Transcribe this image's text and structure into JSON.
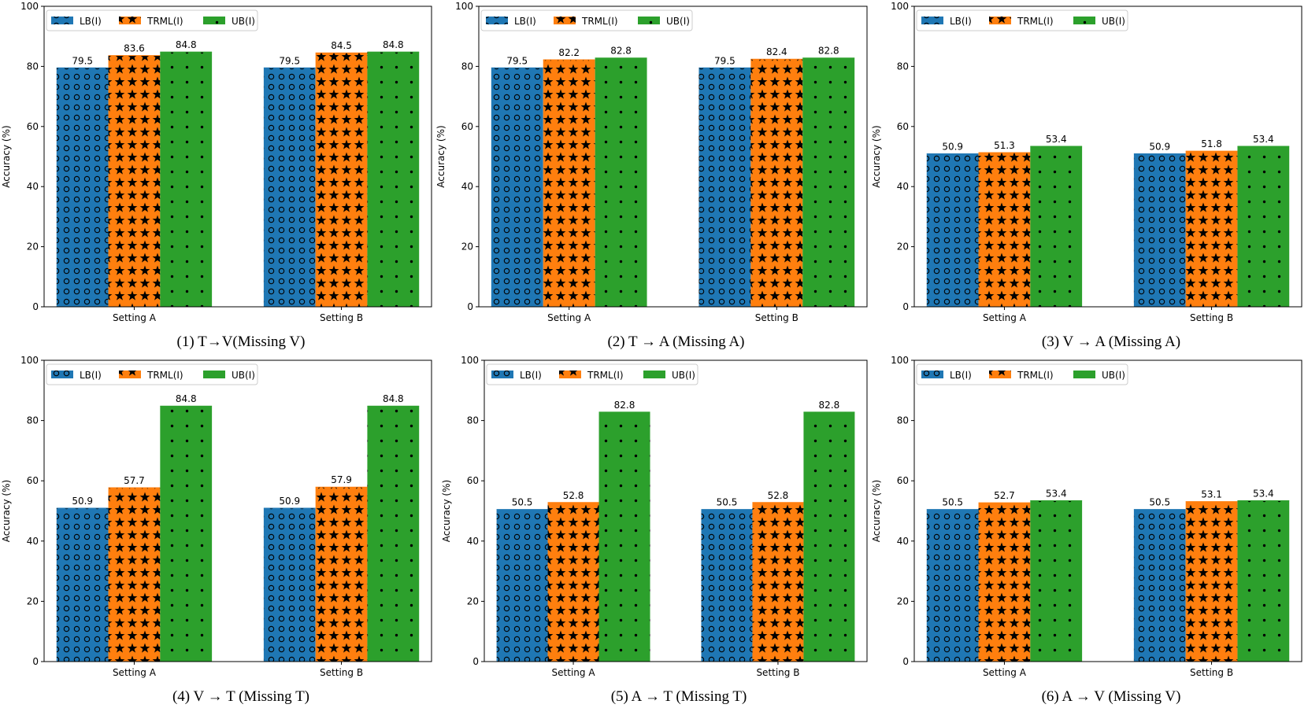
{
  "colors": {
    "series_0": "#1f77b4",
    "series_1": "#ff7f0e",
    "series_2": "#2ca02c"
  },
  "chart_data": [
    {
      "type": "bar",
      "caption": "(1) T→V(Missing V)",
      "categories": [
        "Setting A",
        "Setting B"
      ],
      "ylabel": "Accuracy (%)",
      "ylim": [
        0,
        100
      ],
      "yticks": [
        "0",
        "20",
        "40",
        "60",
        "80",
        "100"
      ],
      "legend": "upper-left",
      "series": [
        {
          "name": "LB(I)",
          "values": [
            79.5,
            79.5
          ],
          "labels": [
            "79.5",
            "79.5"
          ],
          "pattern": "circles"
        },
        {
          "name": "TRML(I)",
          "values": [
            83.6,
            84.5
          ],
          "labels": [
            "83.6",
            "84.5"
          ],
          "pattern": "stars"
        },
        {
          "name": "UB(I)",
          "values": [
            84.8,
            84.8
          ],
          "labels": [
            "84.8",
            "84.8"
          ],
          "pattern": "dots"
        }
      ]
    },
    {
      "type": "bar",
      "caption": "(2) T → A (Missing A)",
      "categories": [
        "Setting A",
        "Setting B"
      ],
      "ylabel": "Accuracy (%)",
      "ylim": [
        0,
        100
      ],
      "yticks": [
        "0",
        "20",
        "40",
        "60",
        "80",
        "100"
      ],
      "legend": "upper-left",
      "series": [
        {
          "name": "LB(I)",
          "values": [
            79.5,
            79.5
          ],
          "labels": [
            "79.5",
            "79.5"
          ],
          "pattern": "circles"
        },
        {
          "name": "TRML(I)",
          "values": [
            82.2,
            82.4
          ],
          "labels": [
            "82.2",
            "82.4"
          ],
          "pattern": "stars"
        },
        {
          "name": "UB(I)",
          "values": [
            82.8,
            82.8
          ],
          "labels": [
            "82.8",
            "82.8"
          ],
          "pattern": "dots"
        }
      ]
    },
    {
      "type": "bar",
      "caption": "(3) V → A (Missing A)",
      "categories": [
        "Setting A",
        "Setting B"
      ],
      "ylabel": "Accuracy (%)",
      "ylim": [
        0,
        100
      ],
      "yticks": [
        "0",
        "20",
        "40",
        "60",
        "80",
        "100"
      ],
      "legend": "upper-left",
      "series": [
        {
          "name": "LB(I)",
          "values": [
            50.9,
            50.9
          ],
          "labels": [
            "50.9",
            "50.9"
          ],
          "pattern": "circles"
        },
        {
          "name": "TRML(I)",
          "values": [
            51.3,
            51.8
          ],
          "labels": [
            "51.3",
            "51.8"
          ],
          "pattern": "stars"
        },
        {
          "name": "UB(I)",
          "values": [
            53.4,
            53.4
          ],
          "labels": [
            "53.4",
            "53.4"
          ],
          "pattern": "dots"
        }
      ]
    },
    {
      "type": "bar",
      "caption": "(4) V → T (Missing T)",
      "categories": [
        "Setting A",
        "Setting B"
      ],
      "ylabel": "Accuracy (%)",
      "ylim": [
        0,
        100
      ],
      "yticks": [
        "0",
        "20",
        "40",
        "60",
        "80",
        "100"
      ],
      "legend": "upper-left",
      "series": [
        {
          "name": "LB(I)",
          "values": [
            50.9,
            50.9
          ],
          "labels": [
            "50.9",
            "50.9"
          ],
          "pattern": "circles"
        },
        {
          "name": "TRML(I)",
          "values": [
            57.7,
            57.9
          ],
          "labels": [
            "57.7",
            "57.9"
          ],
          "pattern": "stars"
        },
        {
          "name": "UB(I)",
          "values": [
            84.8,
            84.8
          ],
          "labels": [
            "84.8",
            "84.8"
          ],
          "pattern": "dots"
        }
      ]
    },
    {
      "type": "bar",
      "caption": "(5) A → T (Missing T)",
      "categories": [
        "Setting A",
        "Setting B"
      ],
      "ylabel": "Accuracy (%)",
      "ylim": [
        0,
        100
      ],
      "yticks": [
        "0",
        "20",
        "40",
        "60",
        "80",
        "100"
      ],
      "legend": "upper-left",
      "series": [
        {
          "name": "LB(I)",
          "values": [
            50.5,
            50.5
          ],
          "labels": [
            "50.5",
            "50.5"
          ],
          "pattern": "circles"
        },
        {
          "name": "TRML(I)",
          "values": [
            52.8,
            52.8
          ],
          "labels": [
            "52.8",
            "52.8"
          ],
          "pattern": "stars"
        },
        {
          "name": "UB(I)",
          "values": [
            82.8,
            82.8
          ],
          "labels": [
            "82.8",
            "82.8"
          ],
          "pattern": "dots"
        }
      ]
    },
    {
      "type": "bar",
      "caption": "(6) A → V (Missing V)",
      "categories": [
        "Setting A",
        "Setting B"
      ],
      "ylabel": "Accuracy (%)",
      "ylim": [
        0,
        100
      ],
      "yticks": [
        "0",
        "20",
        "40",
        "60",
        "80",
        "100"
      ],
      "legend": "upper-left",
      "series": [
        {
          "name": "LB(I)",
          "values": [
            50.5,
            50.5
          ],
          "labels": [
            "50.5",
            "50.5"
          ],
          "pattern": "circles"
        },
        {
          "name": "TRML(I)",
          "values": [
            52.7,
            53.1
          ],
          "labels": [
            "52.7",
            "53.1"
          ],
          "pattern": "stars"
        },
        {
          "name": "UB(I)",
          "values": [
            53.4,
            53.4
          ],
          "labels": [
            "53.4",
            "53.4"
          ],
          "pattern": "dots"
        }
      ]
    }
  ]
}
